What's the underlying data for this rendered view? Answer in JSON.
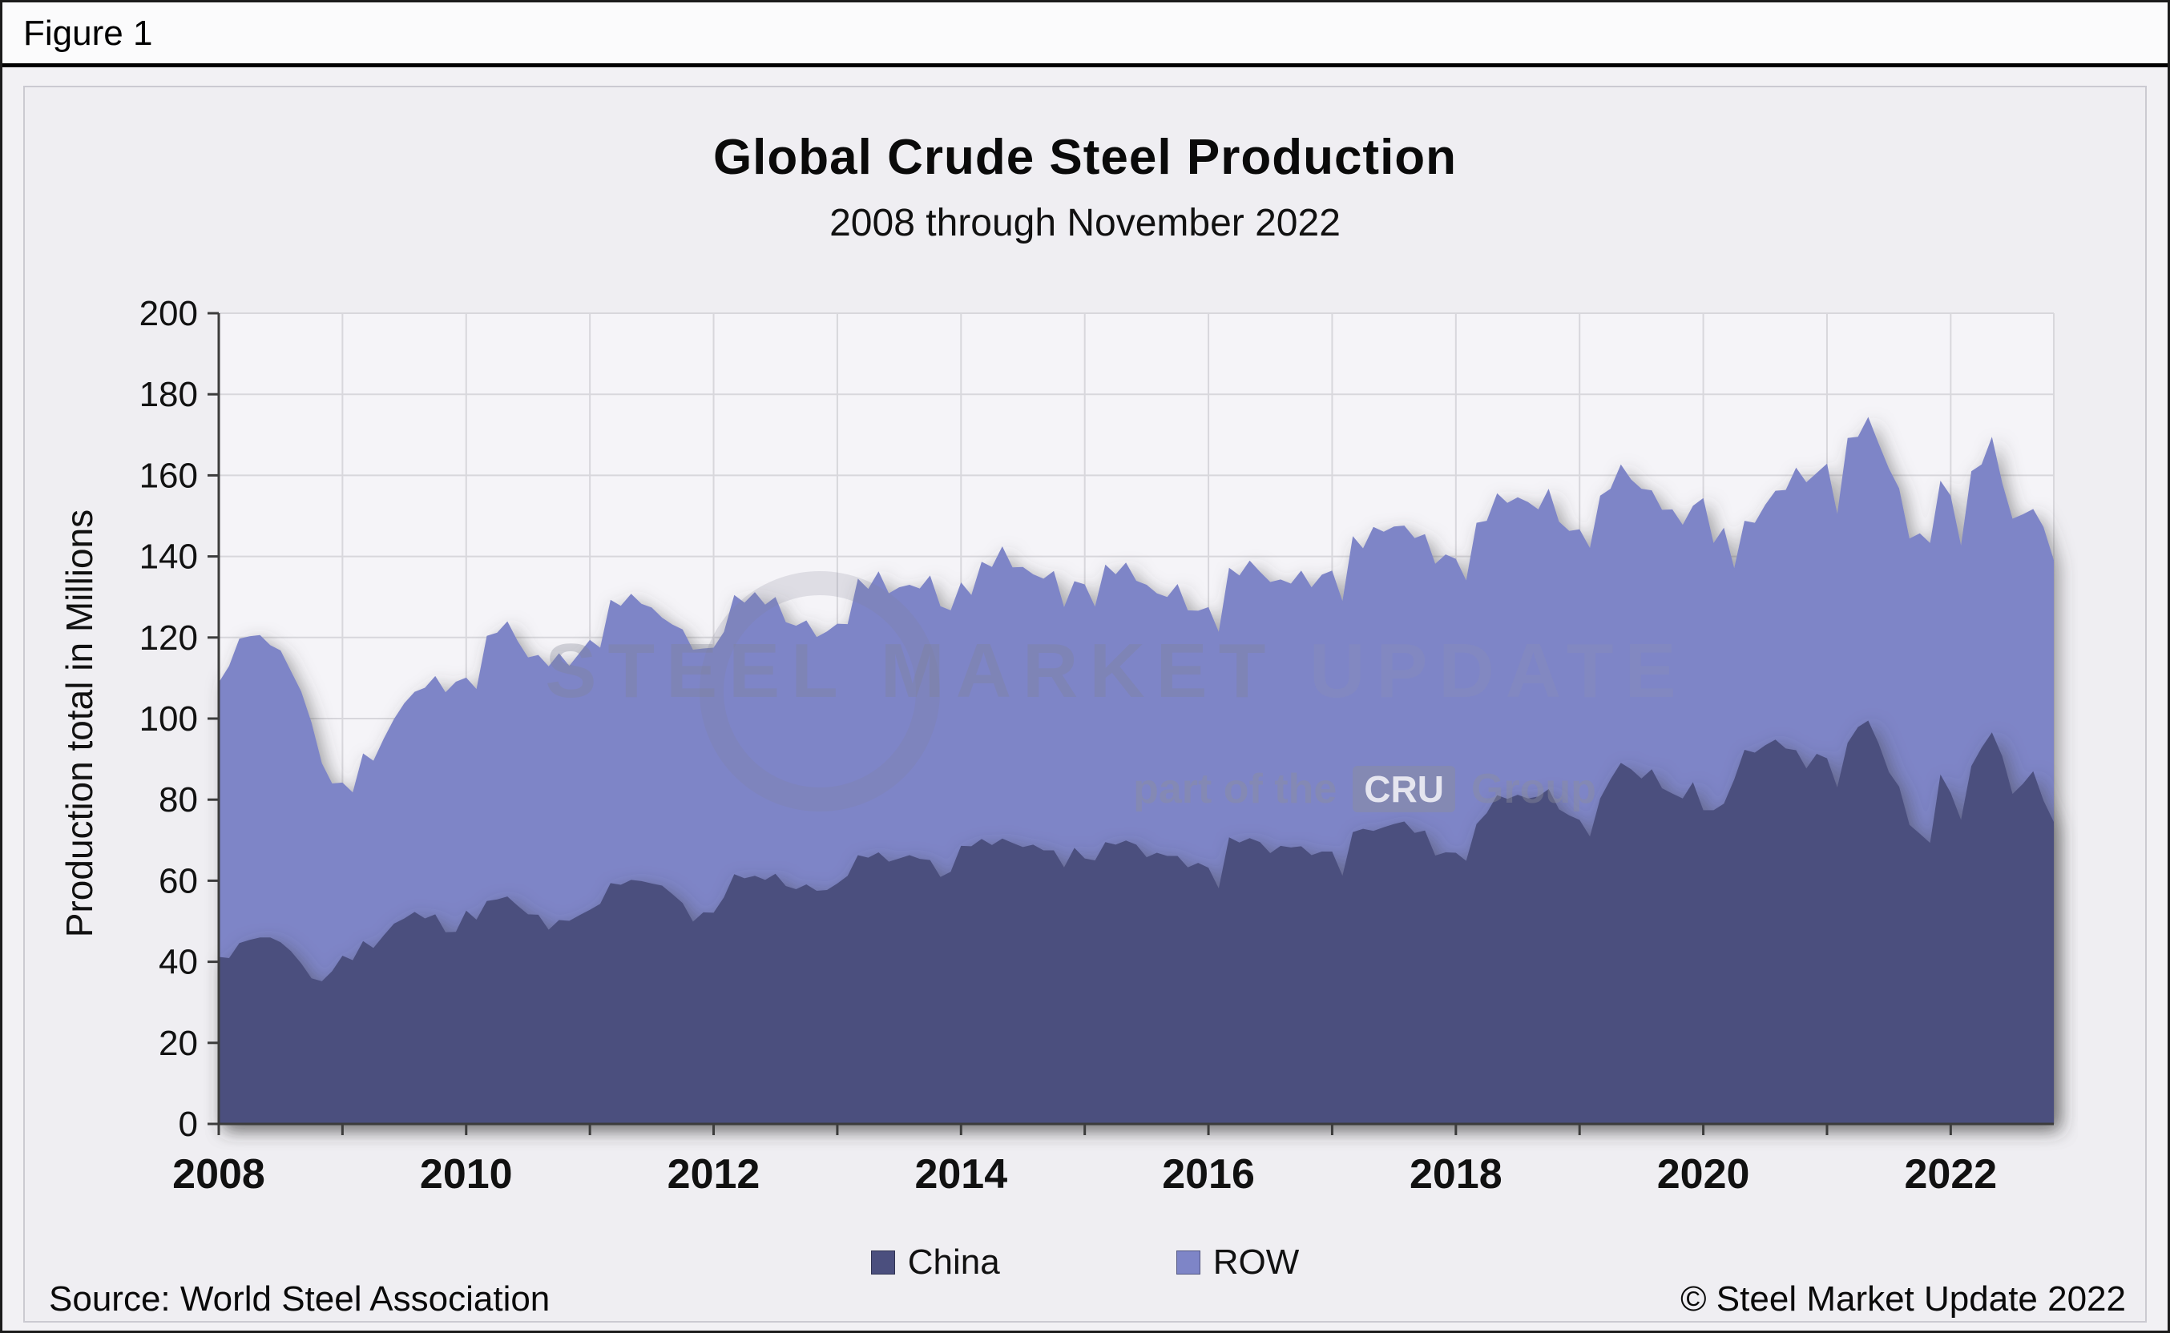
{
  "header": {
    "figure_label": "Figure 1"
  },
  "chart": {
    "title": "Global Crude Steel Production",
    "subtitle": "2008 through November 2022",
    "y_axis_title": "Production total in Millions"
  },
  "legend": [
    {
      "label": "China",
      "color": "#4b4f7e"
    },
    {
      "label": "ROW",
      "color": "#7e85c7"
    }
  ],
  "watermark": {
    "main": "STEEL MARKET",
    "main2": "UPDATE",
    "tagline_prefix": "part of the",
    "logo_text": "CRU",
    "tagline_suffix": "Group"
  },
  "footer": {
    "source": "Source: World Steel Association",
    "copyright": "© Steel Market Update 2022"
  },
  "chart_data": {
    "type": "area",
    "stacked": true,
    "title": "Global Crude Steel Production",
    "subtitle": "2008 through November 2022",
    "ylabel": "Production total in Millions",
    "ylim": [
      0,
      200
    ],
    "ytick_step": 20,
    "x_unit": "month",
    "x_start": "2008-01",
    "x_end": "2022-11",
    "start_year": 2008,
    "xtick_years": [
      2008,
      2010,
      2012,
      2014,
      2016,
      2018,
      2020,
      2022
    ],
    "grid": true,
    "legend_position": "bottom",
    "colors": {
      "china": "#4b4f7e",
      "row": "#7e85c7",
      "plot_bg": "#f5f4f8",
      "grid": "#d8d7dc",
      "axis": "#3c3c3c"
    },
    "series": [
      {
        "name": "China",
        "color": "#4b4f7e",
        "values": [
          41.2,
          40.9,
          44.6,
          45.4,
          46.0,
          46.0,
          44.8,
          42.6,
          39.6,
          35.9,
          35.2,
          37.7,
          41.5,
          40.4,
          45.1,
          43.4,
          46.5,
          49.4,
          50.7,
          52.3,
          50.7,
          51.7,
          47.3,
          47.4,
          52.6,
          50.4,
          55.0,
          55.4,
          56.1,
          53.8,
          51.7,
          51.6,
          47.9,
          50.3,
          50.1,
          51.5,
          52.8,
          54.3,
          59.4,
          59.0,
          60.2,
          59.9,
          59.3,
          58.8,
          56.7,
          54.5,
          49.9,
          52.2,
          52.1,
          55.9,
          61.6,
          60.6,
          61.2,
          60.2,
          61.7,
          58.7,
          57.9,
          59.1,
          57.5,
          57.7,
          59.3,
          61.2,
          66.3,
          65.7,
          67.0,
          64.7,
          65.5,
          66.3,
          65.4,
          65.1,
          60.9,
          62.2,
          68.6,
          68.5,
          70.3,
          68.8,
          70.4,
          69.3,
          68.3,
          68.9,
          67.5,
          67.5,
          63.3,
          68.1,
          65.5,
          65.0,
          69.5,
          68.9,
          69.9,
          68.9,
          65.8,
          66.9,
          66.1,
          66.1,
          63.3,
          64.4,
          63.2,
          58.1,
          70.7,
          69.4,
          70.5,
          69.5,
          66.8,
          68.6,
          68.2,
          68.5,
          66.3,
          67.2,
          67.2,
          61.2,
          72.0,
          72.8,
          72.3,
          73.2,
          74.0,
          74.6,
          71.8,
          72.4,
          66.2,
          67.0,
          66.9,
          64.9,
          74.0,
          76.7,
          81.1,
          80.2,
          81.2,
          80.3,
          80.8,
          82.6,
          77.6,
          76.1,
          75.0,
          70.9,
          80.3,
          85.0,
          89.1,
          87.5,
          85.2,
          87.5,
          82.8,
          81.5,
          80.3,
          84.3,
          77.4,
          77.4,
          79.0,
          85.0,
          92.3,
          91.6,
          93.4,
          94.8,
          92.6,
          92.2,
          87.7,
          91.3,
          90.2,
          83.0,
          94.0,
          97.9,
          99.5,
          93.9,
          86.8,
          83.2,
          73.8,
          71.6,
          69.3,
          86.2,
          81.7,
          75.0,
          88.3,
          92.8,
          96.6,
          90.7,
          81.4,
          83.9,
          87.0,
          79.8,
          74.5
        ]
      },
      {
        "name": "ROW",
        "color": "#7e85c7",
        "values": [
          67.7,
          72.1,
          75.1,
          74.9,
          74.6,
          72.1,
          72.0,
          69.1,
          67.1,
          63.1,
          53.8,
          46.3,
          42.7,
          41.4,
          46.3,
          46.2,
          48.5,
          50.5,
          53.1,
          54.3,
          56.9,
          58.8,
          59.2,
          61.7,
          57.5,
          56.9,
          65.4,
          65.8,
          67.9,
          65.3,
          63.4,
          64.1,
          65.0,
          65.8,
          62.9,
          64.7,
          66.6,
          63.2,
          69.9,
          68.8,
          70.6,
          68.4,
          68.1,
          66.1,
          66.5,
          67.5,
          67.1,
          65.1,
          65.4,
          65.5,
          68.9,
          68.0,
          70.0,
          67.9,
          68.3,
          65.1,
          65.0,
          65.1,
          62.6,
          63.8,
          64.1,
          62.1,
          68.2,
          66.3,
          69.3,
          66.2,
          66.9,
          66.7,
          66.7,
          70.2,
          66.8,
          64.5,
          65.0,
          62.0,
          68.4,
          68.6,
          72.1,
          68.0,
          69.1,
          66.7,
          67.0,
          68.9,
          64.2,
          65.8,
          67.6,
          62.6,
          68.5,
          66.7,
          68.6,
          65.1,
          67.2,
          64.0,
          63.9,
          67.1,
          63.4,
          62.2,
          64.3,
          63.3,
          66.5,
          65.9,
          68.5,
          66.7,
          66.9,
          65.7,
          65.1,
          68.0,
          66.1,
          68.3,
          69.3,
          67.8,
          73.0,
          69.2,
          75.0,
          72.9,
          73.4,
          73.0,
          72.7,
          73.1,
          72.0,
          73.5,
          72.5,
          69.2,
          74.3,
          72.1,
          74.5,
          73.0,
          73.4,
          73.1,
          70.8,
          74.1,
          71.0,
          70.2,
          71.7,
          71.2,
          74.7,
          71.7,
          73.6,
          71.5,
          71.5,
          68.8,
          68.7,
          70.1,
          67.5,
          68.2,
          77.0,
          65.9,
          68.1,
          52.1,
          56.5,
          56.7,
          59.3,
          61.4,
          63.8,
          69.7,
          70.6,
          69.3,
          72.7,
          67.5,
          75.2,
          71.6,
          74.9,
          74.0,
          74.9,
          73.6,
          70.6,
          74.1,
          74.0,
          72.5,
          73.3,
          67.7,
          72.7,
          69.9,
          72.9,
          67.4,
          67.9,
          66.5,
          64.7,
          67.5,
          64.6
        ]
      }
    ]
  }
}
